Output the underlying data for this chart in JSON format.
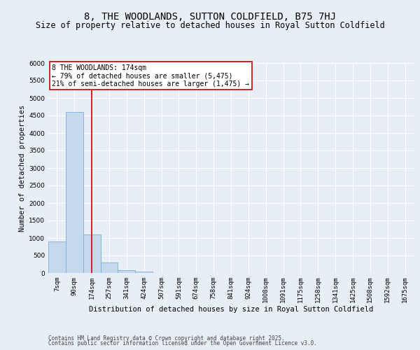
{
  "title": "8, THE WOODLANDS, SUTTON COLDFIELD, B75 7HJ",
  "subtitle": "Size of property relative to detached houses in Royal Sutton Coldfield",
  "xlabel": "Distribution of detached houses by size in Royal Sutton Coldfield",
  "ylabel": "Number of detached properties",
  "bar_color": "#c5d8ee",
  "bar_edge_color": "#7bafd4",
  "categories": [
    "7sqm",
    "90sqm",
    "174sqm",
    "257sqm",
    "341sqm",
    "424sqm",
    "507sqm",
    "591sqm",
    "674sqm",
    "758sqm",
    "841sqm",
    "924sqm",
    "1008sqm",
    "1091sqm",
    "1175sqm",
    "1258sqm",
    "1341sqm",
    "1425sqm",
    "1508sqm",
    "1592sqm",
    "1675sqm"
  ],
  "values": [
    900,
    4600,
    1100,
    300,
    80,
    40,
    10,
    3,
    1,
    1,
    0,
    0,
    0,
    0,
    0,
    0,
    0,
    0,
    0,
    0,
    0
  ],
  "ylim": [
    0,
    6000
  ],
  "vline_x": 2,
  "vline_color": "#cc0000",
  "annotation_text": "8 THE WOODLANDS: 174sqm\n← 79% of detached houses are smaller (5,475)\n21% of semi-detached houses are larger (1,475) →",
  "annotation_box_color": "#ffffff",
  "annotation_box_edge": "#cc0000",
  "footnote1": "Contains HM Land Registry data © Crown copyright and database right 2025.",
  "footnote2": "Contains public sector information licensed under the Open Government Licence v3.0.",
  "background_color": "#e8eef5",
  "grid_color": "#ffffff",
  "title_fontsize": 10,
  "subtitle_fontsize": 8.5,
  "axis_fontsize": 7.5,
  "tick_fontsize": 6.5,
  "annot_fontsize": 7
}
